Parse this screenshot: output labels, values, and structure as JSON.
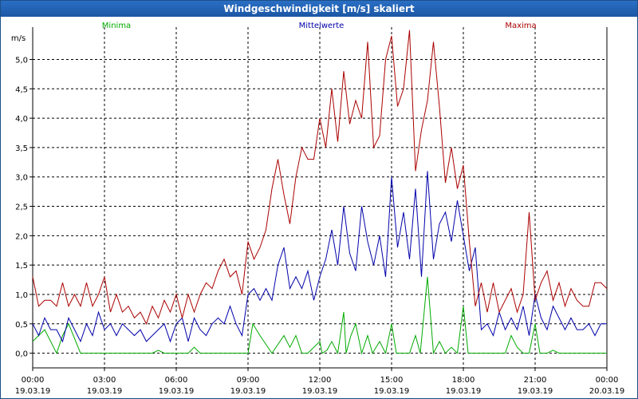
{
  "window": {
    "title": "Windgeschwindigkeit [m/s] skaliert"
  },
  "colors": {
    "minima": "#00aa00",
    "mittelwerte": "#0000aa",
    "maxima": "#aa0000",
    "grid": "#000000"
  },
  "chart_data": {
    "type": "line",
    "ylabel": "m/s",
    "ylim": [
      -0.25,
      5.55
    ],
    "y_ticks": [
      "0,0",
      "0,5",
      "1,0",
      "1,5",
      "2,0",
      "2,5",
      "3,0",
      "3,5",
      "4,0",
      "4,5",
      "5,0"
    ],
    "y_tick_values": [
      0,
      0.5,
      1,
      1.5,
      2,
      2.5,
      3,
      3.5,
      4,
      4.5,
      5
    ],
    "x_hours_range": [
      0,
      24
    ],
    "x_ticks": [
      {
        "time": "00:00",
        "date": "19.03.19"
      },
      {
        "time": "03:00",
        "date": "19.03.19"
      },
      {
        "time": "06:00",
        "date": "19.03.19"
      },
      {
        "time": "09:00",
        "date": "19.03.19"
      },
      {
        "time": "12:00",
        "date": "19.03.19"
      },
      {
        "time": "15:00",
        "date": "19.03.19"
      },
      {
        "time": "18:00",
        "date": "19.03.19"
      },
      {
        "time": "21:00",
        "date": "19.03.19"
      },
      {
        "time": "00:00",
        "date": "20.03.19"
      }
    ],
    "grid": true,
    "series": [
      {
        "name": "Minima",
        "x": [
          0,
          0.5,
          1,
          1.25,
          1.5,
          2,
          2.5,
          3,
          3.5,
          4,
          4.5,
          5,
          5.25,
          5.5,
          6,
          6.5,
          6.75,
          7,
          7.5,
          8,
          8.5,
          9,
          9.2,
          9.5,
          10,
          10.5,
          10.75,
          11,
          11.25,
          11.5,
          12,
          12.1,
          12.3,
          12.5,
          12.75,
          13,
          13.1,
          13.3,
          13.5,
          13.75,
          14,
          14.2,
          14.5,
          14.75,
          15,
          15.2,
          15.5,
          15.75,
          16,
          16.2,
          16.5,
          16.75,
          17,
          17.25,
          17.5,
          17.75,
          18,
          18.2,
          18.5,
          19,
          19.5,
          19.75,
          20,
          20.25,
          20.5,
          20.75,
          21,
          21.2,
          21.5,
          21.75,
          22,
          22.5,
          23,
          23.5,
          24
        ],
        "values": [
          0.2,
          0.4,
          0.0,
          0.3,
          0.5,
          0.0,
          0.0,
          0.0,
          0.0,
          0.0,
          0.0,
          0.0,
          0.05,
          0.0,
          0.0,
          0.0,
          0.1,
          0.0,
          0.0,
          0.0,
          0.0,
          0.0,
          0.5,
          0.3,
          0.0,
          0.3,
          0.1,
          0.3,
          0.0,
          0.0,
          0.2,
          0.0,
          0.05,
          0.2,
          0.0,
          0.7,
          0.0,
          0.3,
          0.5,
          0.0,
          0.3,
          0.0,
          0.2,
          0.0,
          0.5,
          0.0,
          0.0,
          0.0,
          0.3,
          0.0,
          1.3,
          0.0,
          0.2,
          0.0,
          0.1,
          0.0,
          0.8,
          0.0,
          0.0,
          0.0,
          0.0,
          0.0,
          0.3,
          0.1,
          0.0,
          0.0,
          0.5,
          0.0,
          0.0,
          0.05,
          0.0,
          0.0,
          0.0,
          0.0,
          0.0
        ]
      },
      {
        "name": "Mittelwerte",
        "x": [
          0,
          0.25,
          0.5,
          0.75,
          1,
          1.25,
          1.5,
          1.75,
          2,
          2.25,
          2.5,
          2.75,
          3,
          3.25,
          3.5,
          3.75,
          4,
          4.25,
          4.5,
          4.75,
          5,
          5.25,
          5.5,
          5.75,
          6,
          6.25,
          6.5,
          6.75,
          7,
          7.25,
          7.5,
          7.75,
          8,
          8.25,
          8.5,
          8.75,
          9,
          9.25,
          9.5,
          9.75,
          10,
          10.25,
          10.5,
          10.75,
          11,
          11.25,
          11.5,
          11.75,
          12,
          12.25,
          12.5,
          12.75,
          13,
          13.25,
          13.5,
          13.75,
          14,
          14.25,
          14.5,
          14.75,
          15,
          15.25,
          15.5,
          15.75,
          16,
          16.25,
          16.5,
          16.75,
          17,
          17.25,
          17.5,
          17.75,
          18,
          18.25,
          18.5,
          18.75,
          19,
          19.25,
          19.5,
          19.75,
          20,
          20.25,
          20.5,
          20.75,
          21,
          21.25,
          21.5,
          21.75,
          22,
          22.25,
          22.5,
          22.75,
          23,
          23.25,
          23.5,
          23.75,
          24
        ],
        "values": [
          0.5,
          0.3,
          0.6,
          0.4,
          0.4,
          0.2,
          0.6,
          0.4,
          0.2,
          0.5,
          0.3,
          0.7,
          0.4,
          0.5,
          0.3,
          0.5,
          0.4,
          0.3,
          0.4,
          0.2,
          0.3,
          0.4,
          0.5,
          0.2,
          0.5,
          0.6,
          0.2,
          0.6,
          0.4,
          0.3,
          0.5,
          0.6,
          0.5,
          0.8,
          0.5,
          0.3,
          1.0,
          1.1,
          0.9,
          1.1,
          0.9,
          1.5,
          1.8,
          1.1,
          1.3,
          1.1,
          1.4,
          0.9,
          1.3,
          1.6,
          2.1,
          1.5,
          2.5,
          1.7,
          1.4,
          2.5,
          1.9,
          1.5,
          2.0,
          1.3,
          3.0,
          1.8,
          2.4,
          1.6,
          2.8,
          1.3,
          3.1,
          1.6,
          2.2,
          2.4,
          1.9,
          2.6,
          2.0,
          1.4,
          1.8,
          0.4,
          0.5,
          0.3,
          0.7,
          0.4,
          0.6,
          0.4,
          0.8,
          0.3,
          1.0,
          0.6,
          0.4,
          0.8,
          0.6,
          0.4,
          0.6,
          0.4,
          0.4,
          0.5,
          0.3,
          0.5,
          0.5
        ]
      },
      {
        "name": "Maxima",
        "x": [
          0,
          0.25,
          0.5,
          0.75,
          1,
          1.25,
          1.5,
          1.75,
          2,
          2.25,
          2.5,
          2.75,
          3,
          3.25,
          3.5,
          3.75,
          4,
          4.25,
          4.5,
          4.75,
          5,
          5.25,
          5.5,
          5.75,
          6,
          6.25,
          6.5,
          6.75,
          7,
          7.25,
          7.5,
          7.75,
          8,
          8.25,
          8.5,
          8.75,
          9,
          9.25,
          9.5,
          9.75,
          10,
          10.25,
          10.5,
          10.75,
          11,
          11.25,
          11.5,
          11.75,
          12,
          12.25,
          12.5,
          12.75,
          13,
          13.25,
          13.5,
          13.75,
          14,
          14.25,
          14.5,
          14.75,
          15,
          15.25,
          15.5,
          15.75,
          16,
          16.25,
          16.5,
          16.75,
          17,
          17.25,
          17.5,
          17.75,
          18,
          18.25,
          18.5,
          18.75,
          19,
          19.25,
          19.5,
          19.75,
          20,
          20.25,
          20.5,
          20.75,
          21,
          21.25,
          21.5,
          21.75,
          22,
          22.25,
          22.5,
          22.75,
          23,
          23.25,
          23.5,
          23.75,
          24
        ],
        "values": [
          1.3,
          0.8,
          0.9,
          0.9,
          0.8,
          1.2,
          0.8,
          1.0,
          0.8,
          1.2,
          0.8,
          1.0,
          1.3,
          0.7,
          1.0,
          0.7,
          0.8,
          0.6,
          0.7,
          0.5,
          0.8,
          0.6,
          0.9,
          0.7,
          1.0,
          0.6,
          1.0,
          0.7,
          1.0,
          1.2,
          1.1,
          1.4,
          1.6,
          1.3,
          1.4,
          1.0,
          1.9,
          1.6,
          1.8,
          2.1,
          2.8,
          3.3,
          2.7,
          2.2,
          3.0,
          3.5,
          3.3,
          3.3,
          4.0,
          3.5,
          4.5,
          3.6,
          4.8,
          3.9,
          4.3,
          4.0,
          5.3,
          3.5,
          3.7,
          5.0,
          5.4,
          4.2,
          4.5,
          5.5,
          3.1,
          3.8,
          4.3,
          5.3,
          4.2,
          2.9,
          3.5,
          2.8,
          3.2,
          1.9,
          0.8,
          1.2,
          0.7,
          1.2,
          0.7,
          0.9,
          1.1,
          0.7,
          1.0,
          2.4,
          0.9,
          1.2,
          1.4,
          0.9,
          1.2,
          0.8,
          1.1,
          0.9,
          0.8,
          0.8,
          1.2,
          1.2,
          1.1
        ]
      }
    ],
    "legend": [
      {
        "name": "Minima",
        "position": "top-left"
      },
      {
        "name": "Mittelwerte",
        "position": "top-center"
      },
      {
        "name": "Maxima",
        "position": "top-right"
      }
    ]
  }
}
